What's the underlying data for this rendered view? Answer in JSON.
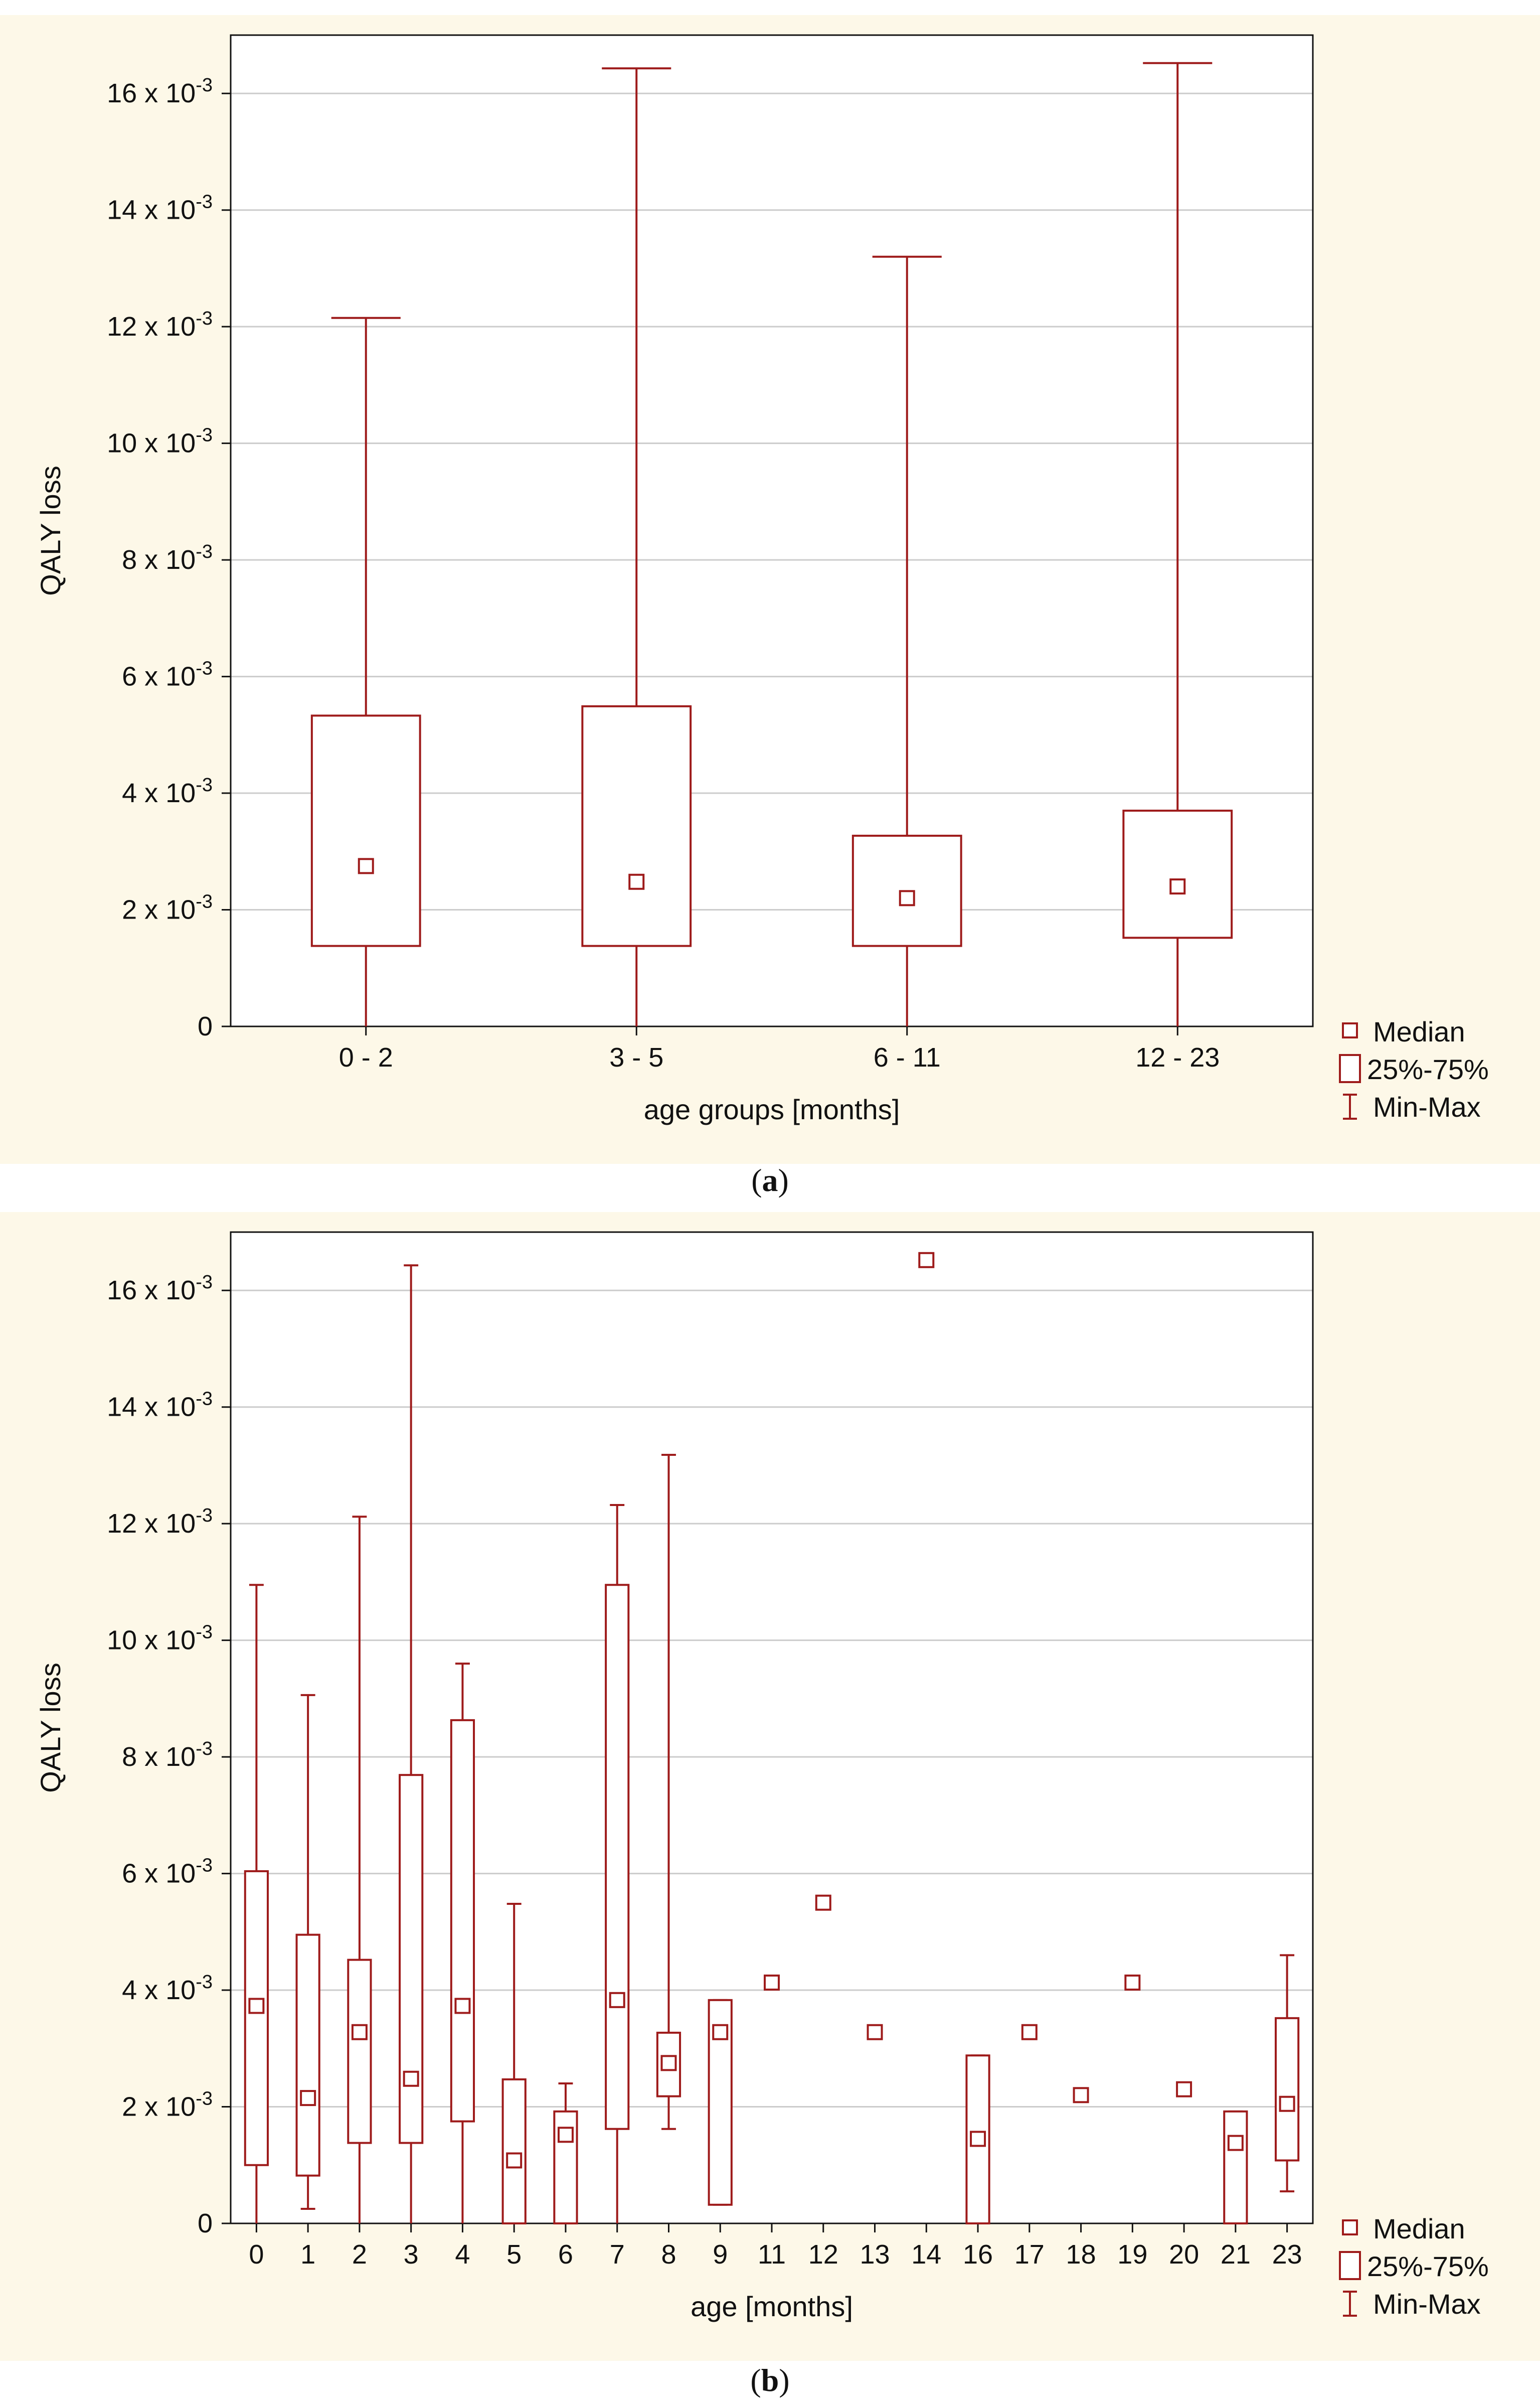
{
  "colors": {
    "accent": "#9e1b1b",
    "background": "#fdf8e8",
    "plot_bg": "#ffffff",
    "grid": "#cccccc"
  },
  "chart_data": [
    {
      "id": "a",
      "type": "boxplot",
      "caption_letter": "a",
      "xlabel": "age groups [months]",
      "ylabel": "QALY loss",
      "ylim": [
        0,
        0.017
      ],
      "yticks": [
        0,
        0.002,
        0.004,
        0.006,
        0.008,
        0.01,
        0.012,
        0.014,
        0.016
      ],
      "ytick_labels": [
        "0",
        "2 x 10-3",
        "4 x 10-3",
        "6 x 10-3",
        "8 x 10-3",
        "10 x 10-3",
        "12 x 10-3",
        "14 x 10-3",
        "16 x 10-3"
      ],
      "categories": [
        "0 - 2",
        "3 - 5",
        "6 - 11",
        "12 - 23"
      ],
      "boxes": [
        {
          "category": "0 - 2",
          "min": 0,
          "q1": 0.00138,
          "median": 0.00275,
          "q3": 0.00533,
          "max": 0.01215
        },
        {
          "category": "3 - 5",
          "min": 0,
          "q1": 0.00138,
          "median": 0.00248,
          "q3": 0.00549,
          "max": 0.01643
        },
        {
          "category": "6 - 11",
          "min": 0,
          "q1": 0.00138,
          "median": 0.0022,
          "q3": 0.00327,
          "max": 0.0132
        },
        {
          "category": "12 - 23",
          "min": 0,
          "q1": 0.00152,
          "median": 0.0024,
          "q3": 0.0037,
          "max": 0.01652
        }
      ],
      "legend": {
        "position": "bottom-right",
        "entries": [
          "Median",
          "25%-75%",
          "Min-Max"
        ]
      }
    },
    {
      "id": "b",
      "type": "boxplot",
      "caption_letter": "b",
      "xlabel": "age [months]",
      "ylabel": "QALY loss",
      "ylim": [
        0,
        0.017
      ],
      "yticks": [
        0,
        0.002,
        0.004,
        0.006,
        0.008,
        0.01,
        0.012,
        0.014,
        0.016
      ],
      "ytick_labels": [
        "0",
        "2 x 10-3",
        "4 x 10-3",
        "6 x 10-3",
        "8 x 10-3",
        "10 x 10-3",
        "12 x 10-3",
        "14 x 10-3",
        "16 x 10-3"
      ],
      "categories": [
        "0",
        "1",
        "2",
        "3",
        "4",
        "5",
        "6",
        "7",
        "8",
        "9",
        "11",
        "12",
        "13",
        "14",
        "16",
        "17",
        "18",
        "19",
        "20",
        "21",
        "23"
      ],
      "boxes": [
        {
          "category": "0",
          "min": 0,
          "q1": 0.001,
          "median": 0.00373,
          "q3": 0.00604,
          "max": 0.01095
        },
        {
          "category": "1",
          "min": 0.00025,
          "q1": 0.00082,
          "median": 0.00215,
          "q3": 0.00495,
          "max": 0.00906
        },
        {
          "category": "2",
          "min": 0,
          "q1": 0.00138,
          "median": 0.00328,
          "q3": 0.00452,
          "max": 0.01212
        },
        {
          "category": "3",
          "min": 0,
          "q1": 0.00138,
          "median": 0.00248,
          "q3": 0.00769,
          "max": 0.01643
        },
        {
          "category": "4",
          "min": 0,
          "q1": 0.00175,
          "median": 0.00373,
          "q3": 0.00863,
          "max": 0.0096
        },
        {
          "category": "5",
          "min": 0,
          "q1": 0,
          "median": 0.00108,
          "q3": 0.00247,
          "max": 0.00548
        },
        {
          "category": "6",
          "min": 0,
          "q1": 0,
          "median": 0.00152,
          "q3": 0.00192,
          "max": 0.0024
        },
        {
          "category": "7",
          "min": 0,
          "q1": 0.00162,
          "median": 0.00383,
          "q3": 0.01095,
          "max": 0.01232
        },
        {
          "category": "8",
          "min": 0.00162,
          "q1": 0.00218,
          "median": 0.00275,
          "q3": 0.00327,
          "max": 0.01318
        },
        {
          "category": "9",
          "min": 0.00032,
          "q1": 0.00032,
          "median": 0.00328,
          "q3": 0.00383,
          "max": 0.00383
        },
        {
          "category": "11",
          "min": 0.00413,
          "q1": 0.00413,
          "median": 0.00413,
          "q3": 0.00413,
          "max": 0.00413
        },
        {
          "category": "12",
          "min": 0.0055,
          "q1": 0.0055,
          "median": 0.0055,
          "q3": 0.0055,
          "max": 0.0055
        },
        {
          "category": "13",
          "min": 0.00328,
          "q1": 0.00328,
          "median": 0.00328,
          "q3": 0.00328,
          "max": 0.00328
        },
        {
          "category": "14",
          "min": 0.01652,
          "q1": 0.01652,
          "median": 0.01652,
          "q3": 0.01652,
          "max": 0.01652
        },
        {
          "category": "16",
          "min": 0,
          "q1": 0,
          "median": 0.00145,
          "q3": 0.00288,
          "max": 0.00288
        },
        {
          "category": "17",
          "min": 0.00328,
          "q1": 0.00328,
          "median": 0.00328,
          "q3": 0.00328,
          "max": 0.00328
        },
        {
          "category": "18",
          "min": 0.0022,
          "q1": 0.0022,
          "median": 0.0022,
          "q3": 0.0022,
          "max": 0.0022
        },
        {
          "category": "19",
          "min": 0.00413,
          "q1": 0.00413,
          "median": 0.00413,
          "q3": 0.00413,
          "max": 0.00413
        },
        {
          "category": "20",
          "min": 0.0023,
          "q1": 0.0023,
          "median": 0.0023,
          "q3": 0.0023,
          "max": 0.0023
        },
        {
          "category": "21",
          "min": 0,
          "q1": 0,
          "median": 0.00138,
          "q3": 0.00192,
          "max": 0.00192
        },
        {
          "category": "23",
          "min": 0.00055,
          "q1": 0.00108,
          "median": 0.00205,
          "q3": 0.00352,
          "max": 0.0046
        }
      ],
      "legend": {
        "position": "bottom-right",
        "entries": [
          "Median",
          "25%-75%",
          "Min-Max"
        ]
      }
    }
  ]
}
